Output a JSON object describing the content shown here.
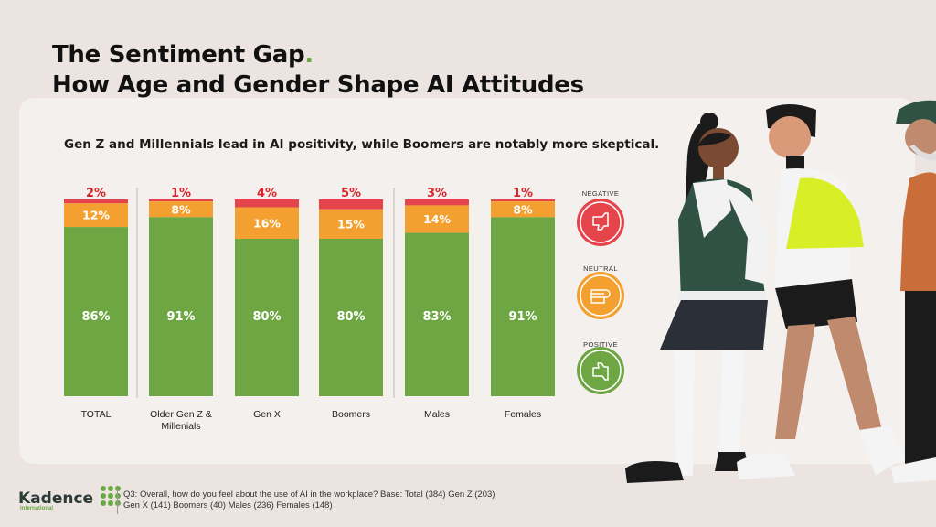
{
  "title": {
    "line1": "The Sentiment Gap",
    "accent": ".",
    "line2": "How Age and Gender Shape AI Attitudes"
  },
  "subtitle": "Gen Z and Millennials lead in AI positivity, while Boomers are notably more skeptical.",
  "colors": {
    "positive": "#6ea644",
    "neutral": "#f4a030",
    "negative": "#e5444b",
    "negative_text": "#d9262e",
    "accent": "#6aa843"
  },
  "legend": [
    {
      "key": "negative",
      "label": "NEGATIVE",
      "icon": "thumbs-down-icon"
    },
    {
      "key": "neutral",
      "label": "NEUTRAL",
      "icon": "fist-icon"
    },
    {
      "key": "positive",
      "label": "POSITIVE",
      "icon": "thumbs-up-icon"
    }
  ],
  "chart_data": {
    "type": "bar",
    "stacked": true,
    "normalized": true,
    "categories": [
      "TOTAL",
      "Older Gen Z & Millenials",
      "Gen X",
      "Boomers",
      "Males",
      "Females"
    ],
    "category_lines": [
      [
        "TOTAL"
      ],
      [
        "Older Gen Z &",
        "Millenials"
      ],
      [
        "Gen X"
      ],
      [
        "Boomers"
      ],
      [
        "Males"
      ],
      [
        "Females"
      ]
    ],
    "series": [
      {
        "name": "POSITIVE",
        "values": [
          86,
          91,
          80,
          80,
          83,
          91
        ]
      },
      {
        "name": "NEUTRAL",
        "values": [
          12,
          8,
          16,
          15,
          14,
          8
        ]
      },
      {
        "name": "NEGATIVE",
        "values": [
          2,
          1,
          4,
          5,
          3,
          1
        ]
      }
    ],
    "value_format": "{v}%",
    "ylim": [
      0,
      100
    ],
    "title": "Gen Z and Millennials lead in AI positivity, while Boomers are notably more skeptical.",
    "xlabel": "",
    "ylabel": "",
    "legend_position": "right"
  },
  "footer": {
    "brand": "Kadence",
    "brand_sub": "International",
    "note": "Q3: Overall, how do you feel about the use of AI in the workplace? Base: Total (384) Gen Z (203) Gen X (141) Boomers (40) Males (236) Females (148)"
  }
}
